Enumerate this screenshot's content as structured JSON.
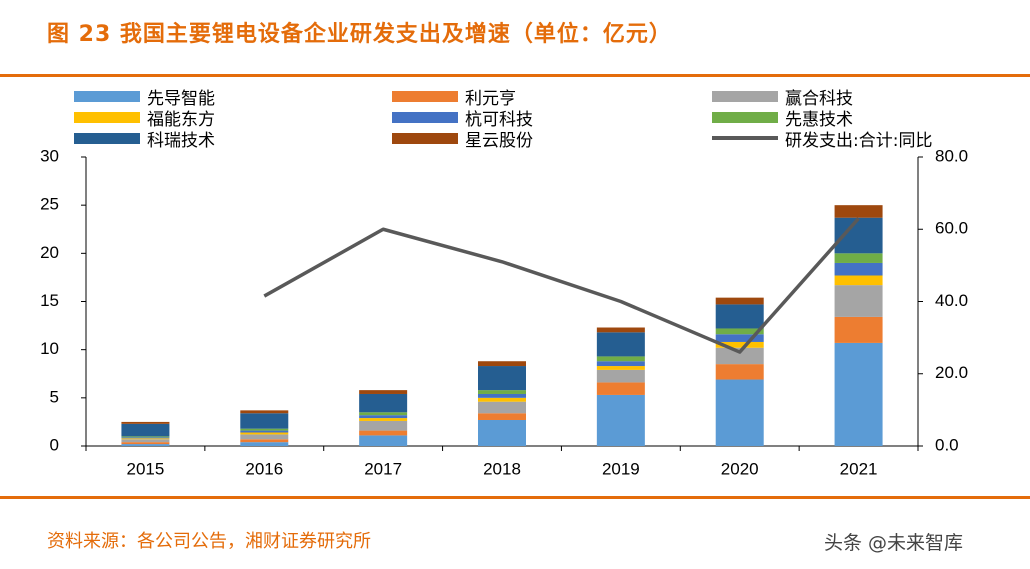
{
  "title": "图 23 我国主要锂电设备企业研发支出及增速（单位：亿元）",
  "source": "资料来源：各公司公告，湘财证券研究所",
  "watermark": "头条 @未来智库",
  "chart_data": {
    "type": "bar",
    "stacked": true,
    "categories": [
      "2015",
      "2016",
      "2017",
      "2018",
      "2019",
      "2020",
      "2021"
    ],
    "series": [
      {
        "name": "先导智能",
        "color": "#5B9BD5",
        "values": [
          0.2,
          0.4,
          1.1,
          2.7,
          5.3,
          6.9,
          10.7
        ]
      },
      {
        "name": "利元亨",
        "color": "#ED7D31",
        "values": [
          0.2,
          0.3,
          0.5,
          0.7,
          1.3,
          1.6,
          2.7
        ]
      },
      {
        "name": "赢合科技",
        "color": "#A5A5A5",
        "values": [
          0.3,
          0.5,
          1.0,
          1.2,
          1.3,
          1.7,
          3.3
        ]
      },
      {
        "name": "福能东方",
        "color": "#FFC000",
        "values": [
          0.1,
          0.2,
          0.3,
          0.4,
          0.4,
          0.6,
          1.0
        ]
      },
      {
        "name": "杭可科技",
        "color": "#4472C4",
        "values": [
          0.1,
          0.2,
          0.3,
          0.4,
          0.5,
          0.8,
          1.3
        ]
      },
      {
        "name": "先惠技术",
        "color": "#70AD47",
        "values": [
          0.1,
          0.2,
          0.3,
          0.4,
          0.5,
          0.6,
          1.0
        ]
      },
      {
        "name": "科瑞技术",
        "color": "#255E91",
        "values": [
          1.3,
          1.6,
          1.9,
          2.5,
          2.5,
          2.5,
          3.7
        ]
      },
      {
        "name": "星云股份",
        "color": "#9E480E",
        "values": [
          0.2,
          0.3,
          0.4,
          0.5,
          0.5,
          0.7,
          1.3
        ]
      }
    ],
    "line_series": {
      "name": "研发支出:合计:同比",
      "color": "#595959",
      "axis": "right",
      "values": [
        null,
        41.5,
        60.0,
        51.0,
        40.0,
        26.0,
        63.0
      ]
    },
    "left_axis": {
      "ylim": [
        0,
        30
      ],
      "ticks": [
        "0",
        "5",
        "10",
        "15",
        "20",
        "25",
        "30"
      ]
    },
    "right_axis": {
      "ylim": [
        0,
        80
      ],
      "ticks": [
        "0.0",
        "20.0",
        "40.0",
        "60.0",
        "80.0"
      ]
    },
    "legend_position": "top"
  }
}
